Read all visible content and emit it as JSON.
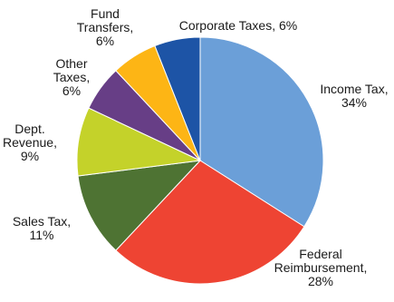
{
  "chart_data": {
    "type": "pie",
    "title": "",
    "start_angle_deg": 0,
    "direction": "clockwise",
    "slices": [
      {
        "name": "Income Tax",
        "label_lines": [
          "Income Tax,",
          "34%"
        ],
        "value": 34,
        "color": "#6B9FD8"
      },
      {
        "name": "Federal Reimbursement",
        "label_lines": [
          "Federal",
          "Reimbursement,",
          "28%"
        ],
        "value": 28,
        "color": "#EE4433"
      },
      {
        "name": "Sales Tax",
        "label_lines": [
          "Sales Tax,",
          "11%"
        ],
        "value": 11,
        "color": "#4E7333"
      },
      {
        "name": "Dept. Revenue",
        "label_lines": [
          "Dept.",
          "Revenue,",
          "9%"
        ],
        "value": 9,
        "color": "#C4D22A"
      },
      {
        "name": "Other Taxes",
        "label_lines": [
          "Other",
          "Taxes,",
          "6%"
        ],
        "value": 6,
        "color": "#673E86"
      },
      {
        "name": "Fund Transfers",
        "label_lines": [
          "Fund",
          "Transfers,",
          "6%"
        ],
        "value": 6,
        "color": "#FDB515"
      },
      {
        "name": "Corporate Taxes",
        "label_lines": [
          "Corporate Taxes, 6%"
        ],
        "value": 6,
        "color": "#1D54A6"
      }
    ]
  }
}
